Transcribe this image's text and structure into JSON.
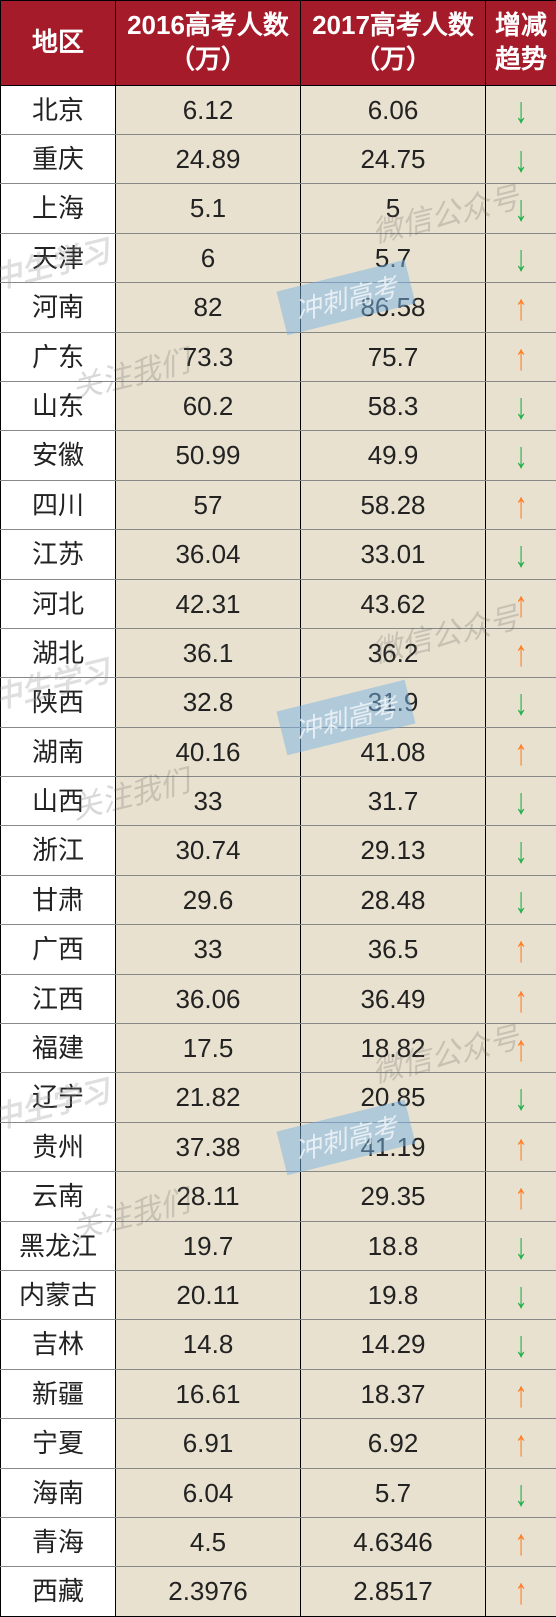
{
  "headers": {
    "region": "地区",
    "y2016": "2016高考人数（万）",
    "y2017": "2017高考人数（万）",
    "trend": "增减趋势"
  },
  "trend_colors": {
    "up": "#ff7f27",
    "down": "#22b14c"
  },
  "header_bg": "#a61b29",
  "shade_bg": "#e8e1cf",
  "rows": [
    {
      "region": "北京",
      "y2016": "6.12",
      "y2017": "6.06",
      "trend": "down"
    },
    {
      "region": "重庆",
      "y2016": "24.89",
      "y2017": "24.75",
      "trend": "down"
    },
    {
      "region": "上海",
      "y2016": "5.1",
      "y2017": "5",
      "trend": "down"
    },
    {
      "region": "天津",
      "y2016": "6",
      "y2017": "5.7",
      "trend": "down"
    },
    {
      "region": "河南",
      "y2016": "82",
      "y2017": "86.58",
      "trend": "up"
    },
    {
      "region": "广东",
      "y2016": "73.3",
      "y2017": "75.7",
      "trend": "up"
    },
    {
      "region": "山东",
      "y2016": "60.2",
      "y2017": "58.3",
      "trend": "down"
    },
    {
      "region": "安徽",
      "y2016": "50.99",
      "y2017": "49.9",
      "trend": "down"
    },
    {
      "region": "四川",
      "y2016": "57",
      "y2017": "58.28",
      "trend": "up"
    },
    {
      "region": "江苏",
      "y2016": "36.04",
      "y2017": "33.01",
      "trend": "down"
    },
    {
      "region": "河北",
      "y2016": "42.31",
      "y2017": "43.62",
      "trend": "up"
    },
    {
      "region": "湖北",
      "y2016": "36.1",
      "y2017": "36.2",
      "trend": "up"
    },
    {
      "region": "陕西",
      "y2016": "32.8",
      "y2017": "31.9",
      "trend": "down"
    },
    {
      "region": "湖南",
      "y2016": "40.16",
      "y2017": "41.08",
      "trend": "up"
    },
    {
      "region": "山西",
      "y2016": "33",
      "y2017": "31.7",
      "trend": "down"
    },
    {
      "region": "浙江",
      "y2016": "30.74",
      "y2017": "29.13",
      "trend": "down"
    },
    {
      "region": "甘肃",
      "y2016": "29.6",
      "y2017": "28.48",
      "trend": "down"
    },
    {
      "region": "广西",
      "y2016": "33",
      "y2017": "36.5",
      "trend": "up"
    },
    {
      "region": "江西",
      "y2016": "36.06",
      "y2017": "36.49",
      "trend": "up"
    },
    {
      "region": "福建",
      "y2016": "17.5",
      "y2017": "18.82",
      "trend": "up"
    },
    {
      "region": "辽宁",
      "y2016": "21.82",
      "y2017": "20.85",
      "trend": "down"
    },
    {
      "region": "贵州",
      "y2016": "37.38",
      "y2017": "41.19",
      "trend": "up"
    },
    {
      "region": "云南",
      "y2016": "28.11",
      "y2017": "29.35",
      "trend": "up"
    },
    {
      "region": "黑龙江",
      "y2016": "19.7",
      "y2017": "18.8",
      "trend": "down"
    },
    {
      "region": "内蒙古",
      "y2016": "20.11",
      "y2017": "19.8",
      "trend": "down"
    },
    {
      "region": "吉林",
      "y2016": "14.8",
      "y2017": "14.29",
      "trend": "down"
    },
    {
      "region": "新疆",
      "y2016": "16.61",
      "y2017": "18.37",
      "trend": "up"
    },
    {
      "region": "宁夏",
      "y2016": "6.91",
      "y2017": "6.92",
      "trend": "up"
    },
    {
      "region": "海南",
      "y2016": "6.04",
      "y2017": "5.7",
      "trend": "down"
    },
    {
      "region": "青海",
      "y2016": "4.5",
      "y2017": "4.6346",
      "trend": "up"
    },
    {
      "region": "西藏",
      "y2016": "2.3976",
      "y2017": "2.8517",
      "trend": "up"
    }
  ],
  "watermarks": {
    "logo_text": "中生学习",
    "follow_text": "关注我们",
    "wechat_text": "微信公众号",
    "gaokao_text": "冲刺高考"
  }
}
